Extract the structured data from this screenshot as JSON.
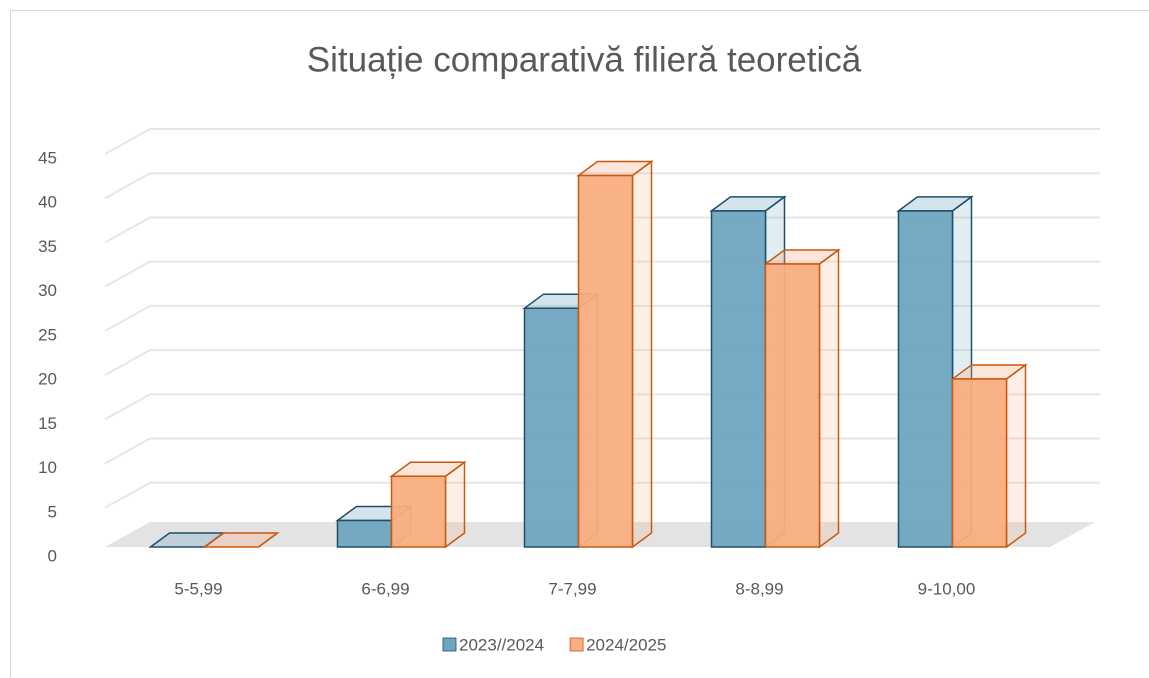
{
  "chart_data": {
    "type": "bar3d",
    "title": "Situație comparativă filieră teoretică",
    "categories": [
      "5-5,99",
      "6-6,99",
      "7-7,99",
      "8-8,99",
      "9-10,00"
    ],
    "series": [
      {
        "name": "2023//2024",
        "color": "#6fa5bf",
        "stroke": "#1f4e6b",
        "values": [
          0,
          3,
          27,
          38,
          38
        ]
      },
      {
        "name": "2024/2025",
        "color": "#f9ad80",
        "stroke": "#c55a11",
        "values": [
          0,
          8,
          42,
          32,
          19
        ]
      }
    ],
    "ylim": [
      0,
      45
    ],
    "yticks": [
      0,
      5,
      10,
      15,
      20,
      25,
      30,
      35,
      40,
      45
    ],
    "grid": true,
    "legend": "bottom"
  }
}
